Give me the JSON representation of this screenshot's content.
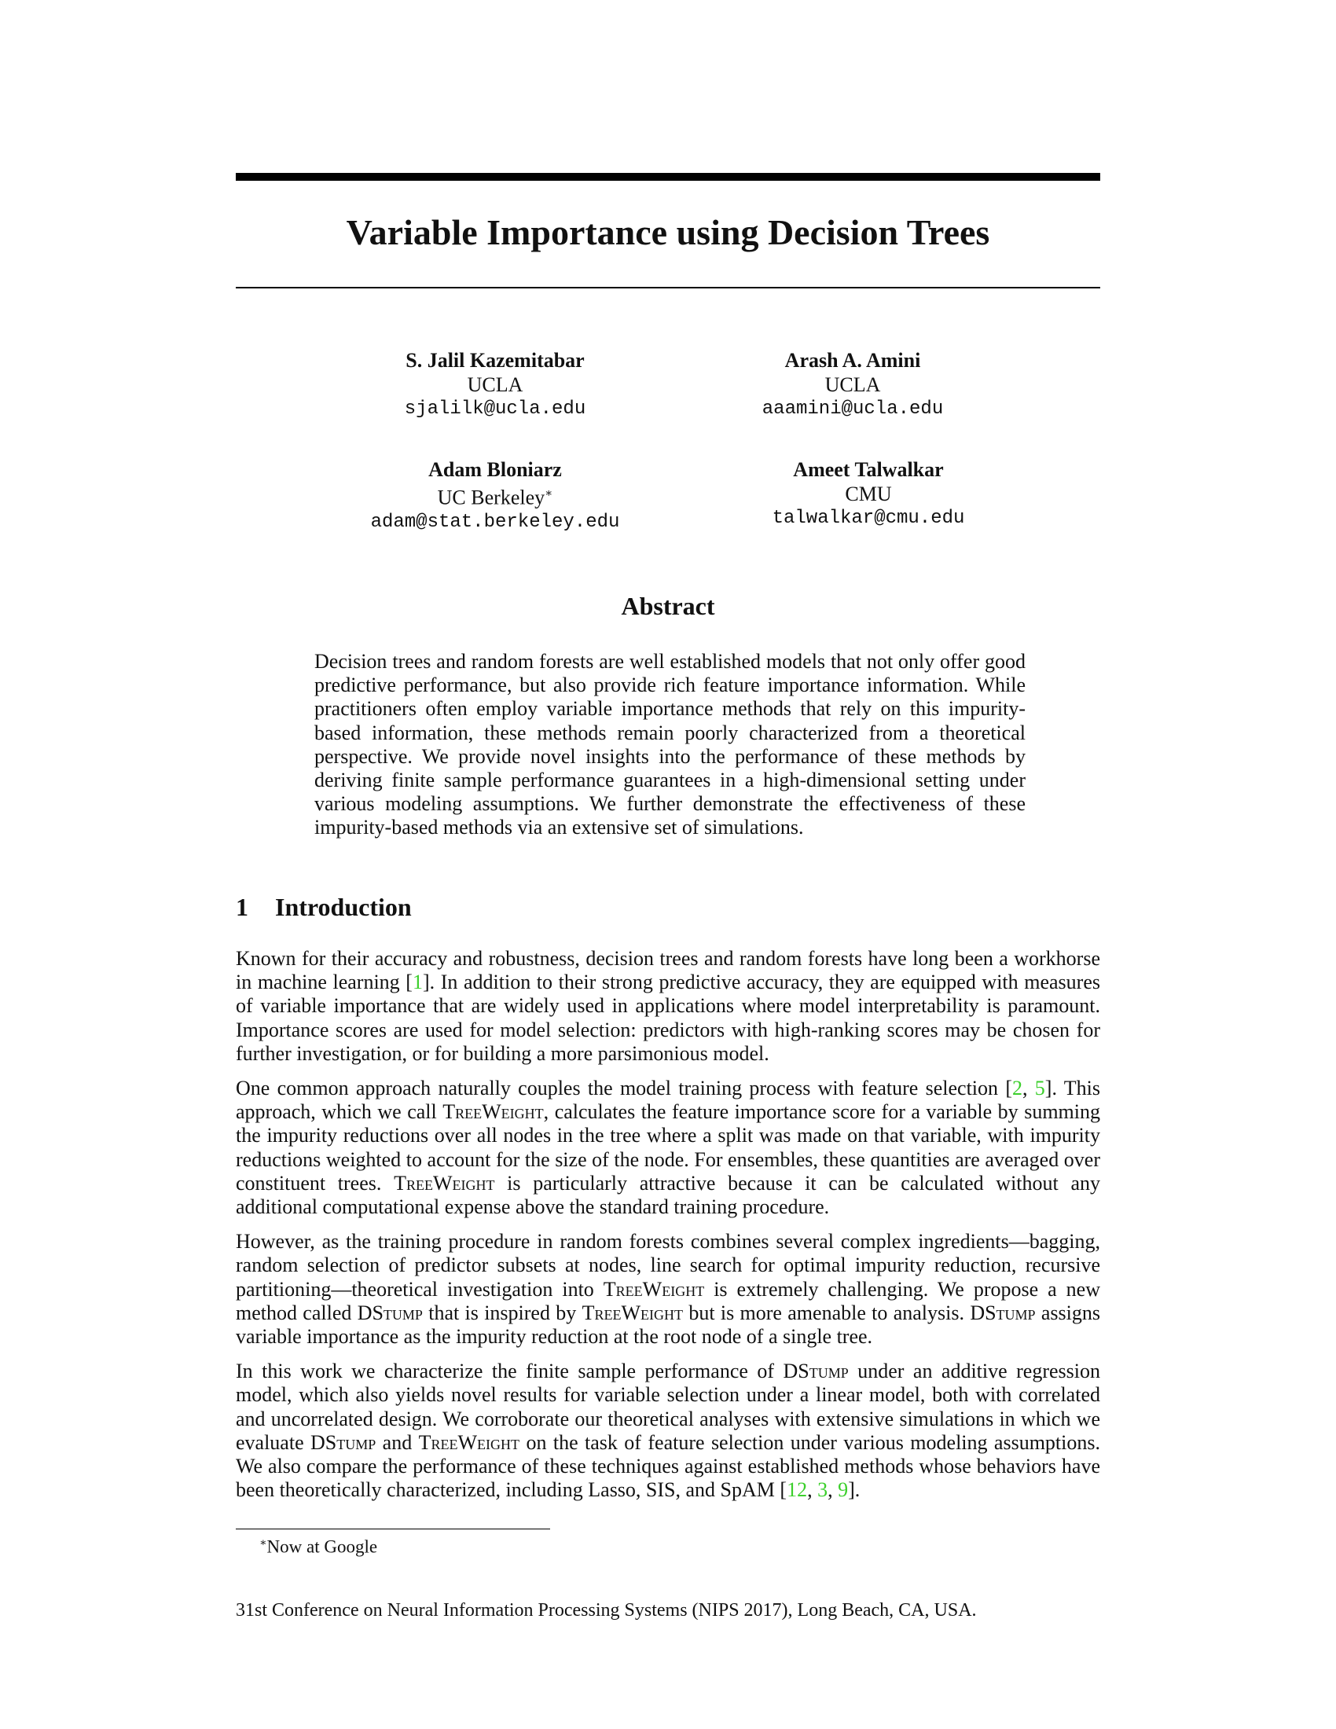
{
  "title": "Variable Importance using Decision Trees",
  "authors": [
    {
      "name": "S. Jalil Kazemitabar",
      "affiliation": "UCLA",
      "email": "sjalilk@ucla.edu"
    },
    {
      "name": "Arash A. Amini",
      "affiliation": "UCLA",
      "email": "aaamini@ucla.edu"
    },
    {
      "name": "Adam Bloniarz",
      "affiliation": "UC Berkeley",
      "affiliation_mark": "∗",
      "email": "adam@stat.berkeley.edu"
    },
    {
      "name": "Ameet Talwalkar",
      "affiliation": "CMU",
      "email": "talwalkar@cmu.edu"
    }
  ],
  "abstract": {
    "heading": "Abstract",
    "text": "Decision trees and random forests are well established models that not only offer good predictive performance, but also provide rich feature importance information. While practitioners often employ variable importance methods that rely on this impurity-based information, these methods remain poorly characterized from a theoretical perspective. We provide novel insights into the performance of these methods by deriving finite sample performance guarantees in a high-dimensional setting under various modeling assumptions. We further demonstrate the effectiveness of these impurity-based methods via an extensive set of simulations."
  },
  "section": {
    "number": "1",
    "title": "Introduction"
  },
  "paragraphs": {
    "p1": {
      "a": "Known for their accuracy and robustness, decision trees and random forests have long been a workhorse in machine learning [",
      "c1": "1",
      "b": "]. In addition to their strong predictive accuracy, they are equipped with measures of variable importance that are widely used in applications where model interpretability is paramount. Importance scores are used for model selection: predictors with high-ranking scores may be chosen for further investigation, or for building a more parsimonious model."
    },
    "p2": {
      "a": "One common approach naturally couples the model training process with feature selection [",
      "c1": "2",
      "sep": ", ",
      "c2": "5",
      "b": "]. This approach, which we call ",
      "tw1": "TreeWeight",
      "c": ", calculates the feature importance score for a variable by summing the impurity reductions over all nodes in the tree where a split was made on that variable, with impurity reductions weighted to account for the size of the node. For ensembles, these quantities are averaged over constituent trees. ",
      "tw2": "TreeWeight",
      "d": " is particularly attractive because it can be calculated without any additional computational expense above the standard training procedure."
    },
    "p3": {
      "a": "However, as the training procedure in random forests combines several complex ingredients—bagging, random selection of predictor subsets at nodes, line search for optimal impurity reduction, recursive partitioning—theoretical investigation into ",
      "tw1": "TreeWeight",
      "b": " is extremely challenging. We propose a new method called ",
      "ds1": "DStump",
      "c": " that is inspired by ",
      "tw2": "TreeWeight",
      "d": " but is more amenable to analysis. ",
      "ds2": "DStump",
      "e": " assigns variable importance as the impurity reduction at the root node of a single tree."
    },
    "p4": {
      "a": "In this work we characterize the finite sample performance of ",
      "ds1": "DStump",
      "b": " under an additive regression model, which also yields novel results for variable selection under a linear model, both with correlated and uncorrelated design. We corroborate our theoretical analyses with extensive simulations in which we evaluate ",
      "ds2": "DStump",
      "c": " and ",
      "tw1": "TreeWeight",
      "d": " on the task of feature selection under various modeling assumptions. We also compare the performance of these techniques against established methods whose behaviors have been theoretically characterized, including Lasso, SIS, and SpAM [",
      "c1": "12",
      "sep1": ", ",
      "c2": "3",
      "sep2": ", ",
      "c3": "9",
      "e": "]."
    }
  },
  "footnote": {
    "mark": "∗",
    "text": "Now at Google"
  },
  "venue": "31st Conference on Neural Information Processing Systems (NIPS 2017), Long Beach, CA, USA.",
  "colors": {
    "citation": "#3ccf2c",
    "text": "#111111"
  }
}
